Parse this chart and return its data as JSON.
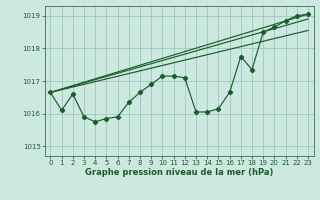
{
  "title": "Graphe pression niveau de la mer (hPa)",
  "bg_color": "#cce8e0",
  "grid_color": "#99ccbb",
  "line_color": "#1a5c2a",
  "xlim": [
    -0.5,
    23.5
  ],
  "ylim": [
    1014.7,
    1019.3
  ],
  "yticks": [
    1015,
    1016,
    1017,
    1018,
    1019
  ],
  "xticks": [
    0,
    1,
    2,
    3,
    4,
    5,
    6,
    7,
    8,
    9,
    10,
    11,
    12,
    13,
    14,
    15,
    16,
    17,
    18,
    19,
    20,
    21,
    22,
    23
  ],
  "series_main": {
    "x": [
      0,
      1,
      2,
      3,
      4,
      5,
      6,
      7,
      8,
      9,
      10,
      11,
      12,
      13,
      14,
      15,
      16,
      17,
      18,
      19,
      20,
      21,
      22,
      23
    ],
    "y": [
      1016.65,
      1016.1,
      1016.6,
      1015.9,
      1015.75,
      1015.85,
      1015.9,
      1016.35,
      1016.65,
      1016.9,
      1017.15,
      1017.15,
      1017.1,
      1016.05,
      1016.05,
      1016.15,
      1016.65,
      1017.75,
      1017.35,
      1018.5,
      1018.65,
      1018.85,
      1019.0,
      1019.05
    ]
  },
  "line_straight1": {
    "x": [
      0,
      23
    ],
    "y": [
      1016.65,
      1019.05
    ]
  },
  "line_straight2": {
    "x": [
      0,
      23
    ],
    "y": [
      1016.65,
      1018.55
    ]
  },
  "line_straight3": {
    "x": [
      0,
      23
    ],
    "y": [
      1016.65,
      1018.9
    ]
  }
}
